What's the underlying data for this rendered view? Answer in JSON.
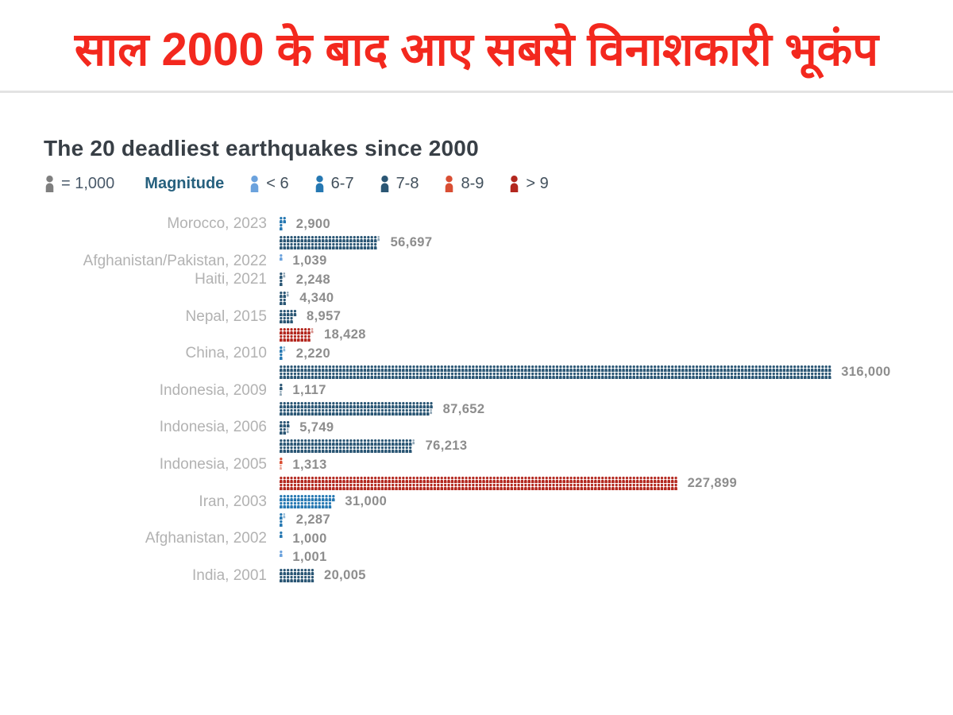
{
  "headline": {
    "text": "साल 2000 के बाद आए सबसे विनाशकारी भूकंप",
    "color": "#f3281e"
  },
  "chart_data": {
    "type": "pictogram-bar",
    "title": "The 20 deadliest earthquakes since 2000",
    "unit_legend": {
      "icon": "person-icon",
      "label": "= 1,000",
      "unit_value": 1000,
      "icon_color": "#7f7f7f"
    },
    "legend_title": "Magnitude",
    "legend": [
      {
        "key": "lt6",
        "label": "< 6",
        "color": "#6ba2dd"
      },
      {
        "key": "m6_7",
        "label": "6-7",
        "color": "#2678b2"
      },
      {
        "key": "m7_8",
        "label": "7-8",
        "color": "#2a5674"
      },
      {
        "key": "m8_9",
        "label": "8-9",
        "color": "#d94e33"
      },
      {
        "key": "gt9",
        "label": "> 9",
        "color": "#b3271e"
      }
    ],
    "rows": [
      {
        "label": "Morocco, 2023",
        "display": "2,900",
        "value": 2900,
        "category": "m6_7"
      },
      {
        "label": "",
        "display": "56,697",
        "value": 56697,
        "category": "m7_8"
      },
      {
        "label": "Afghanistan/Pakistan, 2022",
        "display": "1,039",
        "value": 1039,
        "category": "lt6"
      },
      {
        "label": "Haiti, 2021",
        "display": "2,248",
        "value": 2248,
        "category": "m7_8"
      },
      {
        "label": "",
        "display": "4,340",
        "value": 4340,
        "category": "m7_8"
      },
      {
        "label": "Nepal, 2015",
        "display": "8,957",
        "value": 8957,
        "category": "m7_8"
      },
      {
        "label": "",
        "display": "18,428",
        "value": 18428,
        "category": "gt9"
      },
      {
        "label": "China, 2010",
        "display": "2,220",
        "value": 2220,
        "category": "m6_7"
      },
      {
        "label": "",
        "display": "316,000",
        "value": 316000,
        "category": "m7_8"
      },
      {
        "label": "Indonesia, 2009",
        "display": "1,117",
        "value": 1117,
        "category": "m7_8"
      },
      {
        "label": "",
        "display": "87,652",
        "value": 87652,
        "category": "m7_8"
      },
      {
        "label": "Indonesia, 2006",
        "display": "5,749",
        "value": 5749,
        "category": "m7_8"
      },
      {
        "label": "",
        "display": "76,213",
        "value": 76213,
        "category": "m7_8"
      },
      {
        "label": "Indonesia, 2005",
        "display": "1,313",
        "value": 1313,
        "category": "m8_9"
      },
      {
        "label": "",
        "display": "227,899",
        "value": 227899,
        "category": "gt9"
      },
      {
        "label": "Iran, 2003",
        "display": "31,000",
        "value": 31000,
        "category": "m6_7"
      },
      {
        "label": "",
        "display": "2,287",
        "value": 2287,
        "category": "m6_7"
      },
      {
        "label": "Afghanistan, 2002",
        "display": "1,000",
        "value": 1000,
        "category": "m6_7"
      },
      {
        "label": "",
        "display": "1,001",
        "value": 1001,
        "category": "lt6"
      },
      {
        "label": "India, 2001",
        "display": "20,005",
        "value": 20005,
        "category": "m7_8"
      }
    ]
  }
}
